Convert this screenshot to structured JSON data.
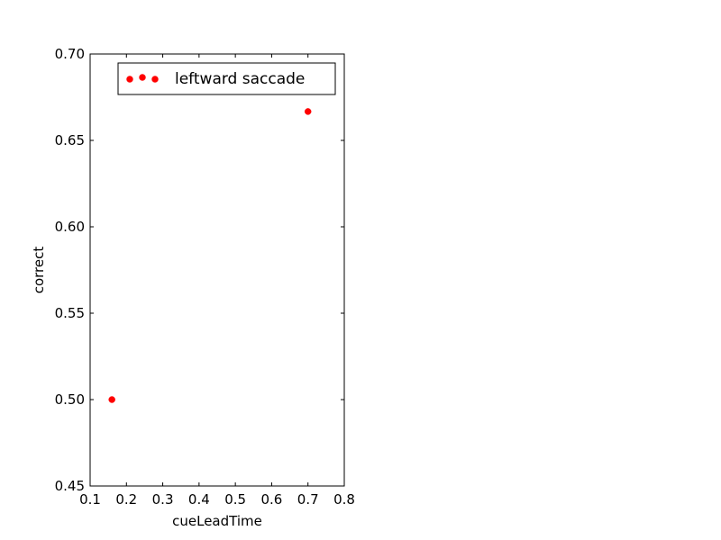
{
  "chart_data": {
    "type": "scatter",
    "title": "",
    "xlabel": "cueLeadTime",
    "ylabel": "correct",
    "xlim": [
      0.1,
      0.8
    ],
    "ylim": [
      0.45,
      0.7
    ],
    "x_ticks": [
      "0.1",
      "0.2",
      "0.3",
      "0.4",
      "0.5",
      "0.6",
      "0.7",
      "0.8"
    ],
    "y_ticks": [
      "0.45",
      "0.50",
      "0.55",
      "0.60",
      "0.65",
      "0.70"
    ],
    "grid": false,
    "legend_position": "top-right",
    "series": [
      {
        "name": "leftward saccade",
        "color": "#ff0000",
        "marker": "circle",
        "points": [
          {
            "x": 0.16,
            "y": 0.5
          },
          {
            "x": 0.7,
            "y": 0.6667
          }
        ]
      }
    ]
  }
}
